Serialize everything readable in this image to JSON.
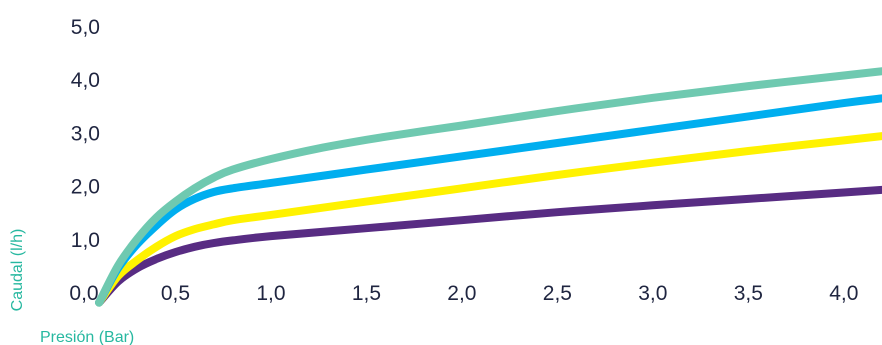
{
  "chart_data": {
    "type": "line",
    "xlabel": "Presión (Bar)",
    "ylabel": "Caudal (l/h)",
    "label_color": "#27b8a0",
    "xlim": [
      0,
      4.2
    ],
    "ylim": [
      0,
      5
    ],
    "grid": false,
    "legend": "none",
    "x_ticks": [
      "0,0",
      "0,5",
      "1,0",
      "1,5",
      "2,0",
      "2,5",
      "3,0",
      "3,5",
      "4,0"
    ],
    "x_tick_values": [
      0,
      0.5,
      1,
      1.5,
      2,
      2.5,
      3,
      3.5,
      4
    ],
    "y_ticks": [
      "0,0",
      "1,0",
      "2,0",
      "3,0",
      "4,0",
      "5,0"
    ],
    "y_tick_values": [
      0,
      1,
      2,
      3,
      4,
      5
    ],
    "series": [
      {
        "color": "#6fc9b0",
        "points": [
          [
            0.1,
            -0.2
          ],
          [
            0.2,
            0.5
          ],
          [
            0.3,
            1.0
          ],
          [
            0.4,
            1.4
          ],
          [
            0.5,
            1.7
          ],
          [
            0.6,
            1.95
          ],
          [
            0.7,
            2.15
          ],
          [
            0.8,
            2.3
          ],
          [
            1.0,
            2.5
          ],
          [
            1.25,
            2.7
          ],
          [
            1.5,
            2.86
          ],
          [
            1.75,
            3.0
          ],
          [
            2.0,
            3.13
          ],
          [
            2.5,
            3.4
          ],
          [
            3.0,
            3.65
          ],
          [
            3.5,
            3.87
          ],
          [
            4.0,
            4.07
          ],
          [
            4.2,
            4.15
          ]
        ]
      },
      {
        "color": "#00aeef",
        "points": [
          [
            0.1,
            -0.2
          ],
          [
            0.2,
            0.45
          ],
          [
            0.3,
            0.9
          ],
          [
            0.4,
            1.25
          ],
          [
            0.5,
            1.55
          ],
          [
            0.6,
            1.75
          ],
          [
            0.7,
            1.88
          ],
          [
            0.8,
            1.95
          ],
          [
            1.0,
            2.05
          ],
          [
            1.5,
            2.3
          ],
          [
            2.0,
            2.55
          ],
          [
            2.5,
            2.8
          ],
          [
            3.0,
            3.05
          ],
          [
            3.5,
            3.3
          ],
          [
            4.0,
            3.55
          ],
          [
            4.2,
            3.64
          ]
        ]
      },
      {
        "color": "#fff200",
        "points": [
          [
            0.1,
            -0.2
          ],
          [
            0.2,
            0.3
          ],
          [
            0.3,
            0.6
          ],
          [
            0.4,
            0.85
          ],
          [
            0.5,
            1.05
          ],
          [
            0.6,
            1.18
          ],
          [
            0.7,
            1.27
          ],
          [
            0.8,
            1.35
          ],
          [
            1.0,
            1.45
          ],
          [
            1.5,
            1.7
          ],
          [
            2.0,
            1.95
          ],
          [
            2.5,
            2.2
          ],
          [
            3.0,
            2.43
          ],
          [
            3.5,
            2.65
          ],
          [
            4.0,
            2.85
          ],
          [
            4.2,
            2.93
          ]
        ]
      },
      {
        "color": "#582c83",
        "points": [
          [
            0.1,
            -0.2
          ],
          [
            0.2,
            0.2
          ],
          [
            0.3,
            0.45
          ],
          [
            0.4,
            0.62
          ],
          [
            0.5,
            0.75
          ],
          [
            0.6,
            0.85
          ],
          [
            0.7,
            0.92
          ],
          [
            0.8,
            0.97
          ],
          [
            1.0,
            1.05
          ],
          [
            1.5,
            1.2
          ],
          [
            2.0,
            1.35
          ],
          [
            2.5,
            1.5
          ],
          [
            3.0,
            1.63
          ],
          [
            3.5,
            1.75
          ],
          [
            4.0,
            1.87
          ],
          [
            4.2,
            1.92
          ]
        ]
      }
    ]
  }
}
